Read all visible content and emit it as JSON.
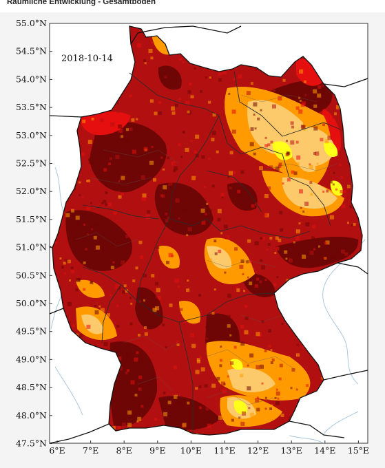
{
  "title": "Räumliche Entwicklung - Gesamtboden",
  "map": {
    "date_label": "2018-10-14",
    "lat_ticks": [
      "55.0°N",
      "54.5°N",
      "54.0°N",
      "53.5°N",
      "53.0°N",
      "52.5°N",
      "52.0°N",
      "51.5°N",
      "51.0°N",
      "50.5°N",
      "50.0°N",
      "49.5°N",
      "49.0°N",
      "48.5°N",
      "48.0°N",
      "47.5°N"
    ],
    "lon_ticks": [
      "6°E",
      "7°E",
      "8°E",
      "9°E",
      "10°E",
      "11°E",
      "12°E",
      "13°E",
      "14°E",
      "15°E"
    ],
    "palette": {
      "extreme": "#6e0606",
      "severe": "#b21010",
      "strong": "#e60f0f",
      "moderate": "#ff9a00",
      "mild": "#fcca6a",
      "abnormal": "#ffff1a",
      "land": "#ffffff",
      "water_line": "#a9c7dc",
      "border": "#111111"
    },
    "icon": "soil-moisture-drought-map"
  }
}
